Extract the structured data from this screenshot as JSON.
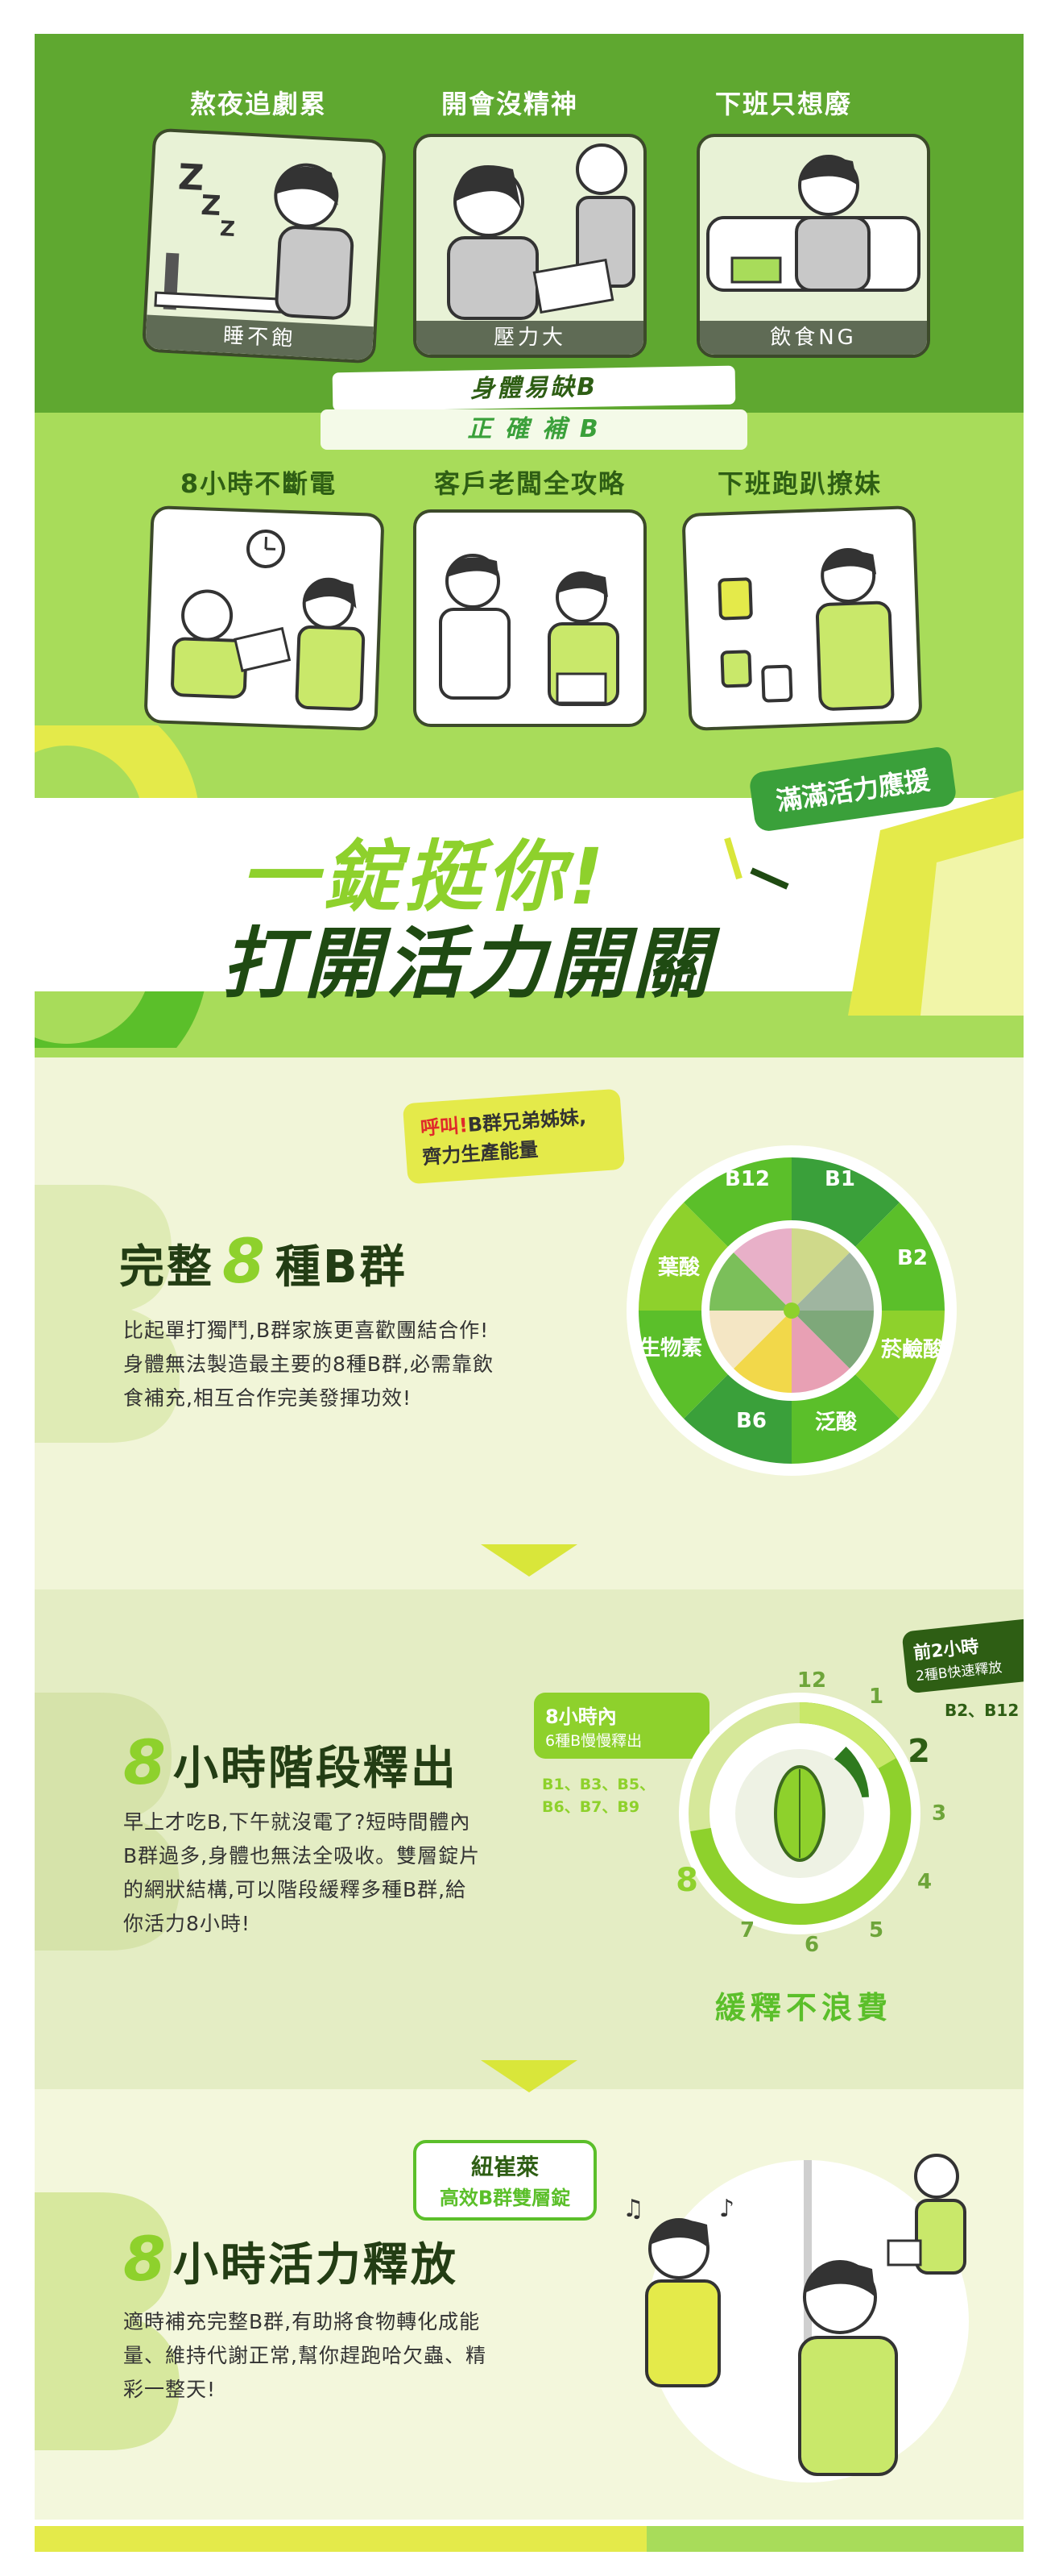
{
  "top": {
    "panels": [
      {
        "caption": "熬夜追劇累",
        "tag": "睡不飽"
      },
      {
        "caption": "開會沒精神",
        "tag": "壓力大"
      },
      {
        "caption": "下班只想廢",
        "tag": "飲食NG"
      }
    ],
    "banner_line1": "身體易缺B",
    "banner_line2": "正 確 補 B",
    "panels2": [
      {
        "caption": "8小時不斷電"
      },
      {
        "caption": "客戶老闆全攻略"
      },
      {
        "caption": "下班跑趴撩妹"
      }
    ]
  },
  "hero": {
    "line1": "一錠挺你!",
    "line2": "打開活力開關",
    "tag": "滿滿活力應援"
  },
  "section1": {
    "bubble": "呼叫!B群兄弟姊妹,齊力生產能量",
    "bubble_highlight": "呼叫!",
    "bubble_rest": "B群兄弟姊妹,齊力生產能量",
    "title_prefix": "完整",
    "title_num": "8",
    "title_suffix": "種B群",
    "body": [
      "比起單打獨鬥,B群家族更喜歡團結合作!",
      "身體無法製造最主要的8種B群,必需靠飲",
      "食補充,相互合作完美發揮功效!"
    ],
    "wheel_labels": [
      "B12",
      "B1",
      "B2",
      "菸鹼酸",
      "泛酸",
      "B6",
      "生物素",
      "葉酸"
    ]
  },
  "section2": {
    "title_num": "8",
    "title_suffix": "小時階段釋出",
    "body": [
      "早上才吃B,下午就沒電了?短時間體內",
      "B群過多,身體也無法全吸收。雙層錠片",
      "的網狀結構,可以階段緩釋多種B群,給",
      "你活力8小時!"
    ],
    "bubble_left_title": "8小時內",
    "bubble_left_sub": "6種B慢慢釋出",
    "left_list": [
      "B1、B3、B5、",
      "B6、B7、B9"
    ],
    "bubble_right_title": "前2小時",
    "bubble_right_sub": "2種B快速釋放",
    "right_list": "B2、B12",
    "clock_numbers": [
      "12",
      "1",
      "2",
      "3",
      "4",
      "5",
      "6",
      "7",
      "8"
    ],
    "caption": "緩釋不浪費"
  },
  "section3": {
    "title_num": "8",
    "title_suffix": "小時活力釋放",
    "body": [
      "適時補充完整B群,有助將食物轉化成能",
      "量、維持代謝正常,幫你趕跑哈欠蟲、精",
      "彩一整天!"
    ],
    "bubble_line1": "紐崔萊",
    "bubble_line2": "高效B群雙層錠"
  },
  "colors": {
    "dark_green": "#5fa830",
    "light_green": "#a8dc5a",
    "lime": "#8ed12c",
    "deep": "#233d14",
    "yellow": "#d9e63a"
  }
}
